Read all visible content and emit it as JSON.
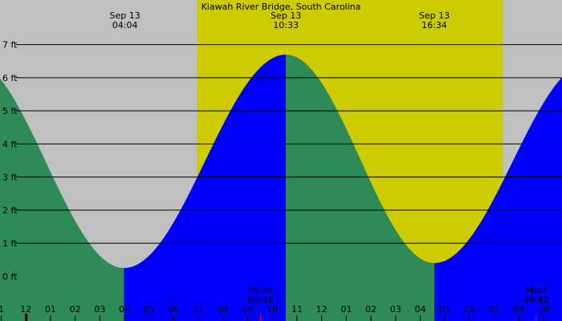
{
  "chart_data": {
    "type": "area",
    "title": "Kiawah River Bridge, South Carolina",
    "y_unit": "ft",
    "ylim": [
      -1.35,
      8.35
    ],
    "yticks": [
      0,
      1,
      2,
      3,
      4,
      5,
      6,
      7
    ],
    "ytick_labels": [
      "0 ft",
      "1 ft",
      "2 ft",
      "3 ft",
      "4 ft",
      "5 ft",
      "6 ft",
      "7 ft"
    ],
    "x_unit": "hour",
    "xlim": [
      -0.05,
      22.75
    ],
    "xticks": [
      0,
      1,
      2,
      3,
      4,
      5,
      6,
      7,
      8,
      9,
      10,
      11,
      12,
      13,
      14,
      15,
      16,
      17,
      18,
      19,
      20,
      21,
      22
    ],
    "xtick_labels": [
      "1",
      "12",
      "01",
      "02",
      "03",
      "04",
      "05",
      "06",
      "07",
      "08",
      "09",
      "10",
      "11",
      "12",
      "01",
      "02",
      "03",
      "04",
      "05",
      "06",
      "07",
      "08",
      "09"
    ],
    "daylight": [
      [
        7.93,
        20.35
      ]
    ],
    "extremes": [
      {
        "hour": 4.98,
        "height": 0.25,
        "type": "low"
      },
      {
        "hour": 11.55,
        "height": 6.7,
        "type": "high"
      },
      {
        "hour": 17.57,
        "height": 0.4,
        "type": "low"
      },
      {
        "hour": 23.9,
        "height": 6.5,
        "type": "high"
      }
    ],
    "series": [
      {
        "name": "",
        "color": "#2e8b57",
        "x": [
          -0.05,
          1.0,
          2.0,
          3.0,
          4.0,
          4.98
        ],
        "y": [
          6.05,
          4.7,
          3.05,
          1.6,
          0.65,
          0.25
        ]
      },
      {
        "name": "",
        "color": "#0000ff",
        "x": [
          4.98,
          6.0,
          7.0,
          8.0,
          9.0,
          10.0,
          11.0,
          11.55
        ],
        "y": [
          0.25,
          0.75,
          1.95,
          3.5,
          5.0,
          6.05,
          6.6,
          6.7
        ]
      },
      {
        "name": "",
        "color": "#2e8b57",
        "x": [
          11.55,
          12.5,
          13.5,
          14.5,
          15.5,
          16.5,
          17.57
        ],
        "y": [
          6.7,
          6.3,
          5.0,
          3.35,
          1.8,
          0.75,
          0.4
        ]
      },
      {
        "name": "",
        "color": "#0000ff",
        "x": [
          17.57,
          18.5,
          19.5,
          20.5,
          21.5,
          22.5,
          22.75
        ],
        "y": [
          0.4,
          0.75,
          1.8,
          3.25,
          4.7,
          5.8,
          6.05
        ]
      }
    ],
    "tide_events": [
      {
        "date": "Sep 13",
        "time": "04:04",
        "hour": 5.02
      },
      {
        "date": "Sep 13",
        "time": "10:33",
        "hour": 11.55
      },
      {
        "date": "Sep 13",
        "time": "16:34",
        "hour": 17.57
      }
    ],
    "moon_events": [
      {
        "label": "Mrise",
        "time": "09:32",
        "hour": 10.53
      },
      {
        "label": "Mset",
        "time": "20:42",
        "hour": 21.7
      }
    ],
    "now_marker_hour": 1.0
  },
  "colors": {
    "night": "#c0c0c0",
    "day": "#cccc00",
    "falling": "#2e8b57",
    "rising": "#0000ff",
    "grid": "#000000",
    "moon_tick": "#ff0000"
  }
}
